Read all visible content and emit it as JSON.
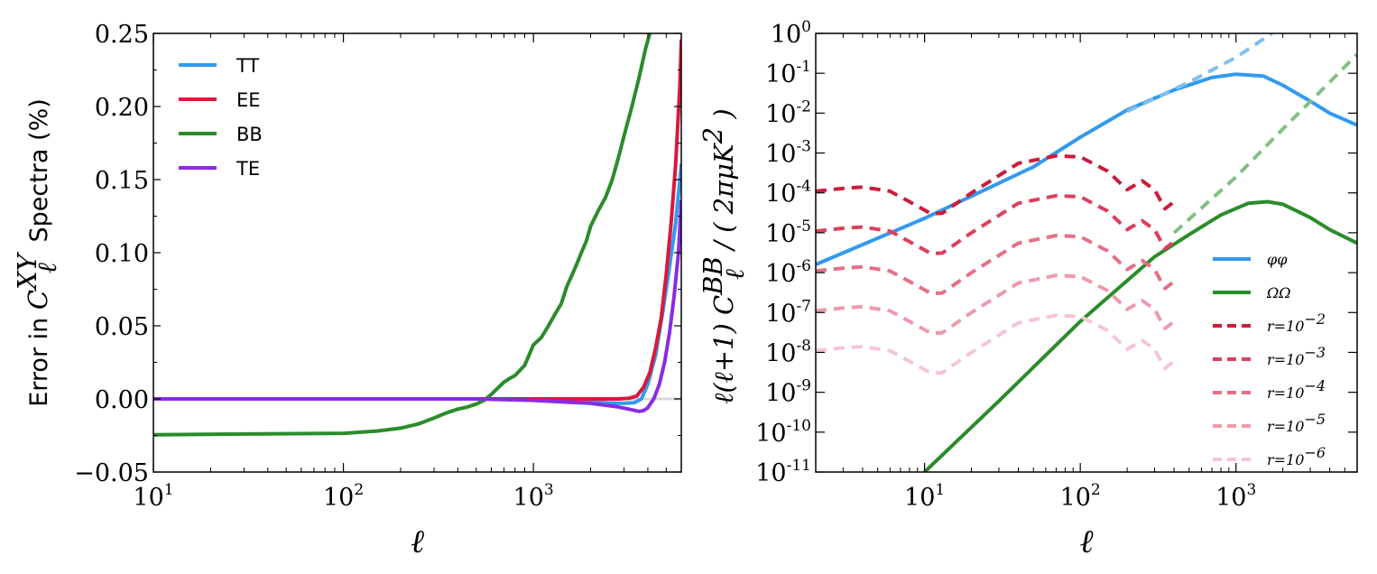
{
  "chart_data": [
    {
      "type": "line",
      "xscale": "log",
      "xlim": [
        10,
        6000
      ],
      "ylim": [
        -0.05,
        0.25
      ],
      "xlabel": "ℓ",
      "ylabel": {
        "prefix": "Error in ",
        "symbol": "C",
        "sup": "XY",
        "sub": "ℓ",
        "suffix": " Spectra (%)"
      },
      "yticks": [
        "−0.05",
        "0.00",
        "0.05",
        "0.10",
        "0.15",
        "0.20",
        "0.25"
      ],
      "ytick_values": [
        -0.05,
        0,
        0.05,
        0.1,
        0.15,
        0.2,
        0.25
      ],
      "xticks": [
        {
          "base": "10",
          "exp": "1",
          "value": 10
        },
        {
          "base": "10",
          "exp": "2",
          "value": 100
        },
        {
          "base": "10",
          "exp": "3",
          "value": 1000
        }
      ],
      "zero_line_color": "#d9d9d9",
      "legend": "top-left",
      "series": [
        {
          "name": "TT",
          "color": "#3399ee",
          "x": [
            10,
            100,
            300,
            600,
            1000,
            1500,
            2000,
            2500,
            3000,
            3400,
            3700,
            4000,
            4400,
            4800,
            5200,
            5600,
            6000
          ],
          "y": [
            0,
            0,
            0,
            0,
            -0.0003,
            -0.001,
            -0.002,
            -0.0028,
            -0.003,
            -0.0025,
            0,
            0.01,
            0.03,
            0.06,
            0.09,
            0.12,
            0.16
          ]
        },
        {
          "name": "EE",
          "color": "#d8193b",
          "x": [
            10,
            100,
            1000,
            2000,
            2800,
            3200,
            3500,
            3800,
            4100,
            4400,
            4700,
            5000,
            5300,
            5600,
            5900,
            6000
          ],
          "y": [
            0,
            0,
            0,
            0,
            0,
            0.0005,
            0.002,
            0.008,
            0.018,
            0.035,
            0.055,
            0.085,
            0.12,
            0.16,
            0.215,
            0.245
          ]
        },
        {
          "name": "BB",
          "color": "#2a8c2a",
          "x": [
            10,
            100,
            150,
            200,
            250,
            300,
            350,
            400,
            450,
            500,
            550,
            600,
            650,
            700,
            750,
            800,
            900,
            1000,
            1100,
            1200,
            1300,
            1400,
            1500,
            1600,
            1700,
            1800,
            1900,
            2000,
            2200,
            2400,
            2600,
            2800,
            3000,
            3300,
            3600,
            3900,
            4200,
            4400
          ],
          "y": [
            -0.0245,
            -0.0235,
            -0.022,
            -0.02,
            -0.017,
            -0.013,
            -0.0095,
            -0.007,
            -0.0055,
            -0.0035,
            -0.001,
            0.003,
            0.0075,
            0.0115,
            0.014,
            0.016,
            0.023,
            0.037,
            0.042,
            0.05,
            0.058,
            0.065,
            0.077,
            0.085,
            0.093,
            0.101,
            0.108,
            0.118,
            0.129,
            0.138,
            0.15,
            0.165,
            0.18,
            0.2,
            0.22,
            0.24,
            0.255,
            0.26
          ]
        },
        {
          "name": "TE",
          "color": "#8b2be2",
          "x": [
            10,
            100,
            500,
            1000,
            2000,
            2800,
            3300,
            3600,
            3800,
            4000,
            4300,
            4600,
            4900,
            5200,
            5500,
            5800,
            6000
          ],
          "y": [
            0,
            0,
            0,
            -0.001,
            -0.003,
            -0.0055,
            -0.0075,
            -0.0085,
            -0.008,
            -0.006,
            0,
            0.01,
            0.025,
            0.045,
            0.07,
            0.1,
            0.135
          ]
        }
      ]
    },
    {
      "type": "line",
      "xscale": "log",
      "yscale": "log",
      "xlim": [
        2,
        6000
      ],
      "ylim": [
        1e-11,
        1
      ],
      "xlabel": "ℓ",
      "ylabel": {
        "a": "ℓ(ℓ+1)  C",
        "sup": "BB",
        "sub": "ℓ",
        "b": "  /  ( 2πμK",
        "sup2": "2",
        "c": " )"
      },
      "xticks": [
        {
          "base": "10",
          "exp": "1",
          "value": 10
        },
        {
          "base": "10",
          "exp": "2",
          "value": 100
        },
        {
          "base": "10",
          "exp": "3",
          "value": 1000
        }
      ],
      "yticks": [
        {
          "base": "10",
          "exp": "0",
          "value": 0
        },
        {
          "base": "10",
          "exp": "-1",
          "value": -1
        },
        {
          "base": "10",
          "exp": "-2",
          "value": -2
        },
        {
          "base": "10",
          "exp": "-3",
          "value": -3
        },
        {
          "base": "10",
          "exp": "-4",
          "value": -4
        },
        {
          "base": "10",
          "exp": "-5",
          "value": -5
        },
        {
          "base": "10",
          "exp": "-6",
          "value": -6
        },
        {
          "base": "10",
          "exp": "-7",
          "value": -7
        },
        {
          "base": "10",
          "exp": "-8",
          "value": -8
        },
        {
          "base": "10",
          "exp": "-9",
          "value": -9
        },
        {
          "base": "10",
          "exp": "-10",
          "value": -10
        },
        {
          "base": "10",
          "exp": "-11",
          "value": -11
        }
      ],
      "legend": "bottom-right",
      "series": [
        {
          "name": "φφ",
          "color": "#3399ee",
          "style": "solid",
          "x": [
            2,
            10,
            50,
            100,
            200,
            400,
            700,
            1000,
            1500,
            2000,
            3000,
            4000,
            6000
          ],
          "y": [
            1.6e-06,
            2.3e-05,
            0.00045,
            0.0025,
            0.012,
            0.038,
            0.078,
            0.095,
            0.085,
            0.05,
            0.02,
            0.01,
            0.005
          ]
        },
        {
          "name": "φφ (dashed extension)",
          "color": "#7fbff0",
          "style": "dashed",
          "x": [
            200,
            500,
            1000,
            1700
          ],
          "y": [
            0.011,
            0.06,
            0.25,
            1.0
          ]
        },
        {
          "name": "ΩΩ",
          "color": "#2a8c2a",
          "style": "solid",
          "x": [
            10,
            30,
            100,
            300,
            500,
            800,
            1200,
            1600,
            2000,
            3000,
            4000,
            6000
          ],
          "y": [
            1e-11,
            6e-10,
            6e-08,
            2.5e-06,
            9e-06,
            2.8e-05,
            5.5e-05,
            6e-05,
            5.2e-05,
            2.4e-05,
            1.2e-05,
            5.5e-06
          ]
        },
        {
          "name": "ΩΩ (dashed extension)",
          "color": "#82c082",
          "style": "dashed",
          "x": [
            400,
            1000,
            2000,
            4000,
            6000
          ],
          "y": [
            1e-05,
            0.00025,
            0.004,
            0.06,
            0.3
          ]
        },
        {
          "name": "r=10−2",
          "color": "#cc1c3c",
          "style": "dashed",
          "x": [
            2,
            3,
            4,
            6,
            8,
            11,
            13,
            20,
            40,
            70,
            100,
            150,
            200,
            250,
            300,
            350,
            400
          ],
          "y": [
            0.00011,
            0.00013,
            0.00014,
            0.00011,
            6e-05,
            3e-05,
            3.1e-05,
            0.0001,
            0.00055,
            0.00085,
            0.0008,
            0.00035,
            0.00012,
            0.0002,
            0.00012,
            4e-05,
            6e-05
          ]
        },
        {
          "name": "r=10−3",
          "color": "#dd3f5c",
          "style": "dashed",
          "x": [
            2,
            3,
            4,
            6,
            8,
            11,
            13,
            20,
            40,
            70,
            100,
            150,
            200,
            250,
            300,
            350,
            400
          ],
          "y": [
            1.1e-05,
            1.3e-05,
            1.4e-05,
            1.1e-05,
            6e-06,
            3e-06,
            3.1e-06,
            1e-05,
            5.5e-05,
            8.5e-05,
            8e-05,
            3.5e-05,
            1.2e-05,
            2e-05,
            1.2e-05,
            4e-06,
            6e-06
          ]
        },
        {
          "name": "r=10−4",
          "color": "#e66f86",
          "style": "dashed",
          "x": [
            2,
            3,
            4,
            6,
            8,
            11,
            13,
            20,
            40,
            70,
            100,
            150,
            200,
            250,
            300,
            350,
            400
          ],
          "y": [
            1.1e-06,
            1.3e-06,
            1.4e-06,
            1.1e-06,
            6e-07,
            3e-07,
            3.1e-07,
            1e-06,
            5.5e-06,
            8.5e-06,
            8e-06,
            3.5e-06,
            1.2e-06,
            2e-06,
            1.2e-06,
            4e-07,
            6e-07
          ]
        },
        {
          "name": "r=10−5",
          "color": "#ee9aaa",
          "style": "dashed",
          "x": [
            2,
            3,
            4,
            6,
            8,
            11,
            13,
            20,
            40,
            70,
            100,
            150,
            200,
            250,
            300,
            350,
            400
          ],
          "y": [
            1.1e-07,
            1.3e-07,
            1.4e-07,
            1.1e-07,
            6e-08,
            3e-08,
            3.1e-08,
            1e-07,
            5.5e-07,
            8.5e-07,
            8e-07,
            3.5e-07,
            1.2e-07,
            2e-07,
            1.2e-07,
            4e-08,
            6e-08
          ]
        },
        {
          "name": "r=10−6",
          "color": "#f6c6cf",
          "style": "dashed",
          "x": [
            2,
            3,
            4,
            6,
            8,
            11,
            13,
            20,
            40,
            70,
            100,
            150,
            200,
            250,
            300,
            350,
            400
          ],
          "y": [
            1.1e-08,
            1.3e-08,
            1.4e-08,
            1.1e-08,
            6e-09,
            3e-09,
            3.1e-09,
            1e-08,
            5.5e-08,
            8.5e-08,
            8e-08,
            3.5e-08,
            1.2e-08,
            2e-08,
            1.2e-08,
            4e-09,
            6e-09
          ]
        }
      ],
      "legend_entries": [
        {
          "label": "φφ",
          "color": "#3399ee",
          "style": "solid"
        },
        {
          "label": "ΩΩ",
          "color": "#2a8c2a",
          "style": "solid"
        },
        {
          "label": "r=10",
          "exp": "−2",
          "color": "#cc1c3c",
          "style": "dashed"
        },
        {
          "label": "r=10",
          "exp": "−3",
          "color": "#dd3f5c",
          "style": "dashed"
        },
        {
          "label": "r=10",
          "exp": "−4",
          "color": "#e66f86",
          "style": "dashed"
        },
        {
          "label": "r=10",
          "exp": "−5",
          "color": "#ee9aaa",
          "style": "dashed"
        },
        {
          "label": "r=10",
          "exp": "−6",
          "color": "#f6c6cf",
          "style": "dashed"
        }
      ]
    }
  ]
}
